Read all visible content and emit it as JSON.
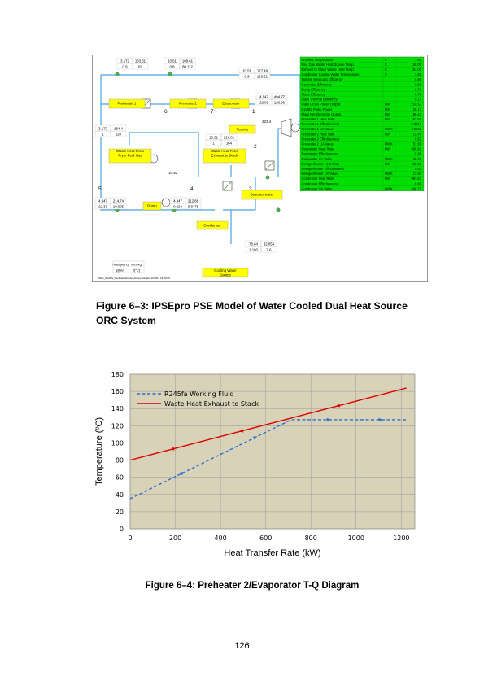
{
  "figure1": {
    "caption": "Figure 6–3: IPSEpro PSE Model of Water Cooled Dual Heat Source ORC System",
    "blocks": [
      "Preheater 1",
      "Preheater2",
      "Evaporator",
      "Turbine",
      "Waste Heat From Fryer Foul Gas",
      "Waste Heat From Exhaust to Stack",
      "Desuperheater",
      "Pump",
      "Condenser",
      "Cooling Water Source"
    ],
    "stream_values": [
      [
        "3.172",
        "133.31",
        "0.9",
        "87"
      ],
      [
        "10.51",
        "109.61",
        "0.8",
        "80.112"
      ],
      [
        "10.51",
        "177.49",
        "0.9",
        "129.21"
      ],
      [
        "4.947",
        "494.77",
        "22.03",
        "126.96"
      ],
      [
        "3.172",
        "184.4",
        "1",
        "120"
      ],
      [
        "10.51",
        "226.01",
        "1",
        "164"
      ],
      [
        "4.947",
        "214.74",
        "22.33",
        "10.695"
      ],
      [
        "4.947",
        "212.88",
        "0.824",
        "9.8475"
      ],
      [
        "78.84",
        "32.054",
        "1.103",
        "7.6"
      ]
    ],
    "single_values": [
      "223.4",
      "10.92"
    ],
    "node_numbers": [
      "6",
      "7",
      "1",
      "2",
      "5",
      "4",
      "3"
    ],
    "legend_units": [
      "mass[kg/s]",
      "h[kJ/kg]",
      "p[bar]",
      "t[°C]"
    ],
    "footer_note": "ORC_R245fa_FoulGasExhaust_AC.ipe, Default 10/2011 15:00:00",
    "table": [
      [
        "Ambient Temperature",
        "C",
        "7.60"
      ],
      [
        "Foul Gas Waste Heat Source Temp.",
        "C",
        "120.00"
      ],
      [
        "Exhaust to Stack Waste Heat Temp.",
        "C",
        "164.00"
      ],
      [
        "Condenser Cooling Water Temperature",
        "C",
        "7.60"
      ],
      [
        "Turbine Isentropic Efficiency",
        "",
        "0.80"
      ],
      [
        "Generator Efficiency",
        "",
        "0.96"
      ],
      [
        "Pump Efficiency",
        "",
        "0.71"
      ],
      [
        "Motor Efficiency",
        "",
        "0.72"
      ],
      [
        "Plant Thermal Efficiency",
        "",
        "0.14"
      ],
      [
        "Plant Gross Power Output",
        "kW",
        "214.57"
      ],
      [
        "R245fa Pump Power",
        "kW",
        "15.17"
      ],
      [
        "Plant Net Electricity Output",
        "kW",
        "199.41"
      ],
      [
        "Preheater 1 Heat Rate",
        "kW",
        "162.06"
      ],
      [
        "Preheater 1 Effectiveness",
        "",
        "0.3019"
      ],
      [
        "Preheater 1 UA Value",
        "kW/K",
        "2.0592"
      ],
      [
        "Preheater 2 Heat Rate",
        "kW",
        "713.45"
      ],
      [
        "Preheater 2 Effectiveness",
        "",
        "0.52"
      ],
      [
        "Preheater 2 UA Value",
        "kW/K",
        "51.56"
      ],
      [
        "Evaporator Heat Rate",
        "kW",
        "509.91"
      ],
      [
        "Evaporator Effectiveness",
        "",
        "0.95"
      ],
      [
        "Evaporator UA Value",
        "kW/K",
        "42.49"
      ],
      [
        "Desuperheater Heat Rate",
        "kW",
        "168.90"
      ],
      [
        "Desuperheater Effectiveness",
        "",
        "0.01"
      ],
      [
        "Desuperheater UA Value",
        "kW/K",
        "13.84"
      ],
      [
        "Condenser Heat Rate",
        "kW",
        "997.63"
      ],
      [
        "Condenser Effectiveness",
        "",
        "0.80"
      ],
      [
        "Condenser UA Value",
        "kW/K",
        "468.75"
      ]
    ]
  },
  "figure2": {
    "caption": "Figure 6–4: Preheater 2/Evaporator T-Q Diagram"
  },
  "page_number": "126",
  "colors": {
    "table_green": "#00e000",
    "block_yellow": "#ffff00",
    "plot_bg": "#d8d3b8",
    "red_line": "#e00000",
    "blue_line": "#2f6fd0"
  },
  "chart_data": {
    "type": "line",
    "title": "",
    "xlabel": "Heat Transfer Rate (kW)",
    "ylabel": "Temperature (ºC)",
    "xlim": [
      0,
      1260
    ],
    "ylim": [
      0,
      180
    ],
    "xticks": [
      "0",
      "200",
      "400",
      "600",
      "800",
      "1000",
      "1200"
    ],
    "yticks": [
      "0",
      "20",
      "40",
      "60",
      "80",
      "100",
      "120",
      "140",
      "160",
      "180"
    ],
    "grid": true,
    "legend_position": "upper-left",
    "series": [
      {
        "name": "R245fa Working Fluid",
        "style": "dashed",
        "color": "#2f6fd0",
        "x": [
          0,
          713,
          1223
        ],
        "y": [
          35,
          127,
          127
        ]
      },
      {
        "name": "Waste Heat Exhaust to Stack",
        "style": "solid",
        "color": "#e00000",
        "x": [
          0,
          1223
        ],
        "y": [
          80,
          164
        ]
      }
    ]
  }
}
